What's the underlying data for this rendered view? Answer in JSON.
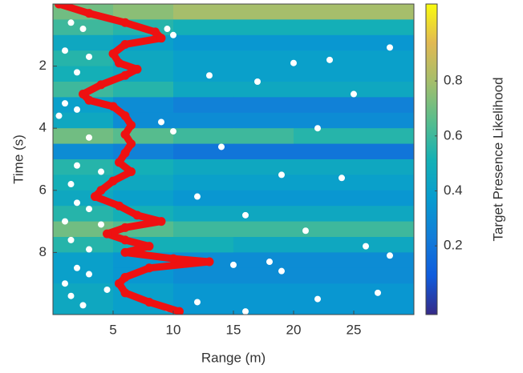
{
  "chart_data": {
    "type": "heatmap",
    "xlabel": "Range (m)",
    "ylabel": "Time (s)",
    "colorbar_label": "Target Presence Likelihood",
    "xlim": [
      0,
      30
    ],
    "ylim": [
      0,
      10
    ],
    "y_reversed": true,
    "xticks": [
      5,
      10,
      15,
      20,
      25
    ],
    "yticks": [
      2,
      4,
      6,
      8
    ],
    "clim": [
      -0.05,
      1.08
    ],
    "colorbar_ticks": [
      0.2,
      0.4,
      0.6,
      0.8
    ],
    "colormap": "parula",
    "x_edges": [
      0,
      5,
      10,
      15,
      20,
      25,
      30
    ],
    "y_edges": [
      0,
      0.5,
      1,
      1.5,
      2,
      2.5,
      3,
      3.5,
      4,
      4.5,
      5,
      5.5,
      6,
      6.5,
      7,
      7.5,
      8,
      8.5,
      9,
      9.5,
      10
    ],
    "z": [
      [
        0.7,
        0.75,
        0.8,
        0.8,
        0.8,
        0.8
      ],
      [
        0.6,
        0.55,
        0.5,
        0.5,
        0.5,
        0.5
      ],
      [
        0.45,
        0.4,
        0.35,
        0.35,
        0.35,
        0.35
      ],
      [
        0.55,
        0.45,
        0.4,
        0.4,
        0.4,
        0.4
      ],
      [
        0.5,
        0.45,
        0.4,
        0.4,
        0.4,
        0.4
      ],
      [
        0.6,
        0.55,
        0.45,
        0.45,
        0.45,
        0.45
      ],
      [
        0.4,
        0.3,
        0.25,
        0.25,
        0.25,
        0.25
      ],
      [
        0.45,
        0.3,
        0.3,
        0.3,
        0.3,
        0.3
      ],
      [
        0.7,
        0.65,
        0.6,
        0.6,
        0.55,
        0.55
      ],
      [
        0.3,
        0.25,
        0.2,
        0.2,
        0.2,
        0.2
      ],
      [
        0.55,
        0.5,
        0.45,
        0.45,
        0.45,
        0.45
      ],
      [
        0.5,
        0.45,
        0.4,
        0.4,
        0.4,
        0.4
      ],
      [
        0.45,
        0.4,
        0.35,
        0.35,
        0.35,
        0.35
      ],
      [
        0.55,
        0.5,
        0.45,
        0.45,
        0.45,
        0.45
      ],
      [
        0.7,
        0.65,
        0.6,
        0.6,
        0.6,
        0.6
      ],
      [
        0.55,
        0.5,
        0.5,
        0.45,
        0.45,
        0.45
      ],
      [
        0.4,
        0.35,
        0.3,
        0.3,
        0.3,
        0.3
      ],
      [
        0.4,
        0.35,
        0.3,
        0.3,
        0.3,
        0.3
      ],
      [
        0.45,
        0.4,
        0.35,
        0.35,
        0.35,
        0.35
      ],
      [
        0.45,
        0.4,
        0.35,
        0.35,
        0.35,
        0.35
      ]
    ],
    "detections": {
      "color": "#ffffff",
      "x": [
        1.5,
        2.5,
        9.5,
        10,
        1,
        3,
        2,
        20,
        23,
        13,
        17,
        25,
        28,
        1,
        2,
        0.5,
        9,
        10,
        3,
        14,
        22,
        2,
        4,
        1.5,
        24,
        19,
        12,
        2,
        3,
        1,
        4,
        8,
        16,
        21,
        1.5,
        3,
        26,
        28,
        18,
        2,
        3,
        1,
        15,
        19,
        27,
        12,
        1.5,
        2.5,
        4.5,
        9.5,
        16,
        22
      ],
      "y": [
        0.6,
        0.8,
        0.8,
        1.0,
        1.5,
        1.7,
        2.2,
        1.9,
        1.8,
        2.3,
        2.5,
        2.9,
        1.4,
        3.2,
        3.4,
        3.6,
        3.8,
        4.1,
        4.3,
        4.6,
        4.0,
        5.2,
        5.4,
        5.8,
        5.6,
        5.5,
        6.2,
        6.4,
        6.6,
        7.0,
        7.1,
        6.9,
        6.8,
        7.3,
        7.6,
        7.9,
        7.8,
        8.1,
        8.3,
        8.5,
        8.7,
        9.0,
        8.4,
        8.6,
        9.3,
        9.6,
        9.4,
        9.7,
        9.2,
        9.8,
        9.9,
        9.5
      ]
    },
    "track": {
      "color": "#ee1111",
      "x": [
        0.5,
        3,
        6,
        8.5,
        9,
        6,
        5,
        5.5,
        7,
        6,
        4,
        2.5,
        3,
        5,
        6,
        6.5,
        6,
        6.5,
        6,
        5.5,
        6.5,
        5,
        4,
        3.5,
        5.5,
        7,
        9,
        6,
        4.5,
        6,
        8,
        6,
        10,
        13,
        8,
        6,
        5.5,
        6,
        8,
        10.5
      ],
      "y": [
        0,
        0.3,
        0.6,
        0.9,
        1.1,
        1.3,
        1.6,
        1.9,
        2.1,
        2.3,
        2.6,
        2.9,
        3.1,
        3.3,
        3.6,
        3.9,
        4.2,
        4.5,
        4.8,
        5.1,
        5.4,
        5.7,
        6.0,
        6.2,
        6.5,
        6.8,
        7.0,
        7.2,
        7.4,
        7.6,
        7.8,
        8.0,
        8.2,
        8.3,
        8.5,
        8.8,
        9.0,
        9.3,
        9.6,
        9.9
      ]
    }
  }
}
